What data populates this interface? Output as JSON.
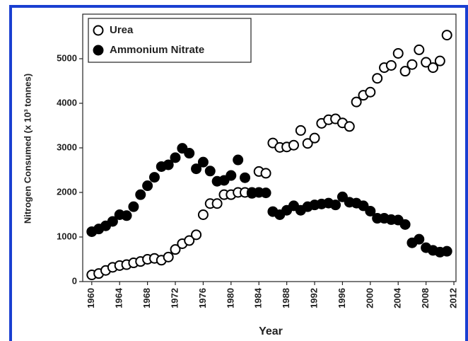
{
  "chart_data": {
    "type": "scatter",
    "xlabel": "Year",
    "ylabel": "Nitrogen Consumed (x 10³  tonnes)",
    "x": [
      1960,
      1961,
      1962,
      1963,
      1964,
      1965,
      1966,
      1967,
      1968,
      1969,
      1970,
      1971,
      1972,
      1973,
      1974,
      1975,
      1976,
      1977,
      1978,
      1979,
      1980,
      1981,
      1982,
      1983,
      1984,
      1985,
      1986,
      1987,
      1988,
      1989,
      1990,
      1991,
      1992,
      1993,
      1994,
      1995,
      1996,
      1997,
      1998,
      1999,
      2000,
      2001,
      2002,
      2003,
      2004,
      2005,
      2006,
      2007,
      2008,
      2009,
      2010,
      2011
    ],
    "series": [
      {
        "name": "Urea",
        "color": "#ffffff",
        "edgecolor": "#000000",
        "values": [
          150,
          180,
          250,
          320,
          360,
          380,
          420,
          450,
          500,
          520,
          480,
          550,
          720,
          850,
          920,
          1050,
          1500,
          1750,
          1750,
          1950,
          1950,
          2000,
          2000,
          1980,
          2470,
          2430,
          3110,
          3010,
          3020,
          3060,
          3390,
          3100,
          3220,
          3550,
          3630,
          3650,
          3560,
          3480,
          4030,
          4180,
          4250,
          4560,
          4800,
          4850,
          5120,
          4720,
          4870,
          5200,
          4920,
          4800,
          4950,
          5530
        ]
      },
      {
        "name": "Ammonium Nitrate",
        "color": "#000000",
        "edgecolor": "#000000",
        "values": [
          1120,
          1180,
          1250,
          1350,
          1500,
          1480,
          1680,
          1950,
          2150,
          2340,
          2580,
          2620,
          2780,
          2990,
          2880,
          2530,
          2680,
          2480,
          2250,
          2270,
          2380,
          2730,
          2330,
          2000,
          2000,
          1990,
          1570,
          1500,
          1600,
          1700,
          1600,
          1680,
          1720,
          1740,
          1760,
          1720,
          1900,
          1780,
          1760,
          1700,
          1580,
          1420,
          1420,
          1390,
          1380,
          1280,
          870,
          950,
          760,
          700,
          660,
          680
        ]
      }
    ],
    "xlim": [
      1958.7,
      2012.3
    ],
    "ylim": [
      0,
      6000
    ],
    "xticks": [
      1960,
      1964,
      1968,
      1972,
      1976,
      1980,
      1984,
      1988,
      1992,
      1996,
      2000,
      2004,
      2008,
      2012
    ],
    "yticks": [
      0,
      1000,
      2000,
      3000,
      4000,
      5000
    ],
    "grid": false,
    "legend": "upper left"
  }
}
